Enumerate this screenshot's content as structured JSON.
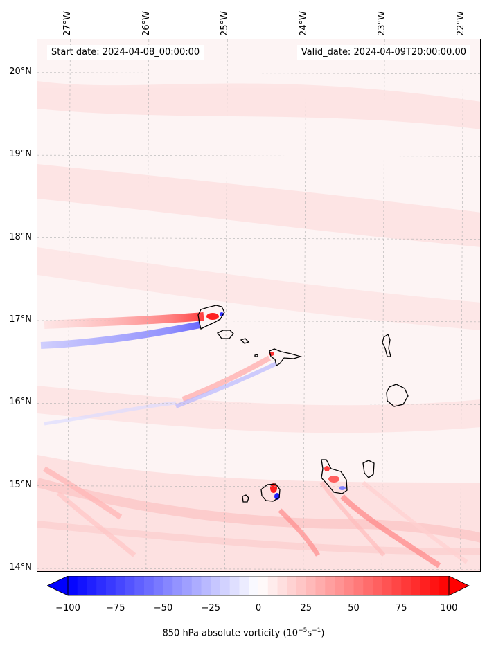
{
  "map": {
    "start_label": "Start date: 2024-04-08_00:00:00",
    "valid_label": "Valid_date: 2024-04-09T20:00:00.00",
    "lon_ticks": [
      "27°W",
      "26°W",
      "25°W",
      "24°W",
      "23°W",
      "22°W"
    ],
    "lat_ticks": [
      "20°N",
      "19°N",
      "18°N",
      "17°N",
      "16°N",
      "15°N",
      "14°N"
    ],
    "extent": {
      "lon_min": -27.4,
      "lon_max": -21.75,
      "lat_min": 13.95,
      "lat_max": 20.4
    },
    "islands": [
      "Santo Antão",
      "São Vicente",
      "Santa Luzia",
      "São Nicolau",
      "Sal",
      "Boa Vista",
      "Maio",
      "Santiago",
      "Fogo",
      "Brava"
    ]
  },
  "colorbar": {
    "ticks": [
      "−100",
      "−75",
      "−50",
      "−25",
      "0",
      "25",
      "50",
      "75",
      "100"
    ],
    "values": [
      -100,
      -75,
      -50,
      -25,
      0,
      25,
      50,
      75,
      100
    ],
    "label_main": "850 hPa absolute vorticity (10",
    "label_exp1": "−5",
    "label_mid": "s",
    "label_exp2": "−1",
    "label_end": ")",
    "min_color": "#0000ff",
    "mid_color": "#ffffff",
    "max_color": "#ff0000"
  }
}
